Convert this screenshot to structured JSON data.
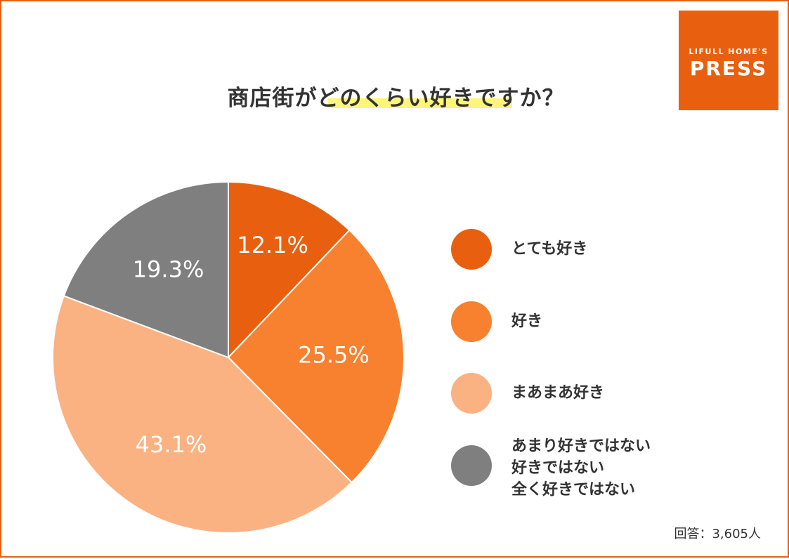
{
  "title": "商店街がどのくらい好きですか？",
  "logo": {
    "line1": "LIFULL HOME'S",
    "line2": "PRESS"
  },
  "note": "回答：3,605人",
  "colors": {
    "frame": "#E8600F",
    "highlight": "#FFF57A"
  },
  "chart_data": {
    "type": "pie",
    "title": "商店街がどのくらい好きですか？",
    "slices": [
      {
        "label": "とても好き",
        "value": 12.1,
        "display": "12.1%",
        "color": "#E8600F"
      },
      {
        "label": "好き",
        "value": 25.5,
        "display": "25.5%",
        "color": "#F7812F"
      },
      {
        "label": "まあまあ好き",
        "value": 43.1,
        "display": "43.1%",
        "color": "#FBB283"
      },
      {
        "label": "あまり好きではない",
        "label_lines": [
          "あまり好きではない",
          "好きではない",
          "全く好きではない"
        ],
        "value": 19.3,
        "display": "19.3%",
        "color": "#7F7F7F"
      }
    ],
    "start_angle": "12 o'clock",
    "direction": "clockwise",
    "legend": "right"
  }
}
